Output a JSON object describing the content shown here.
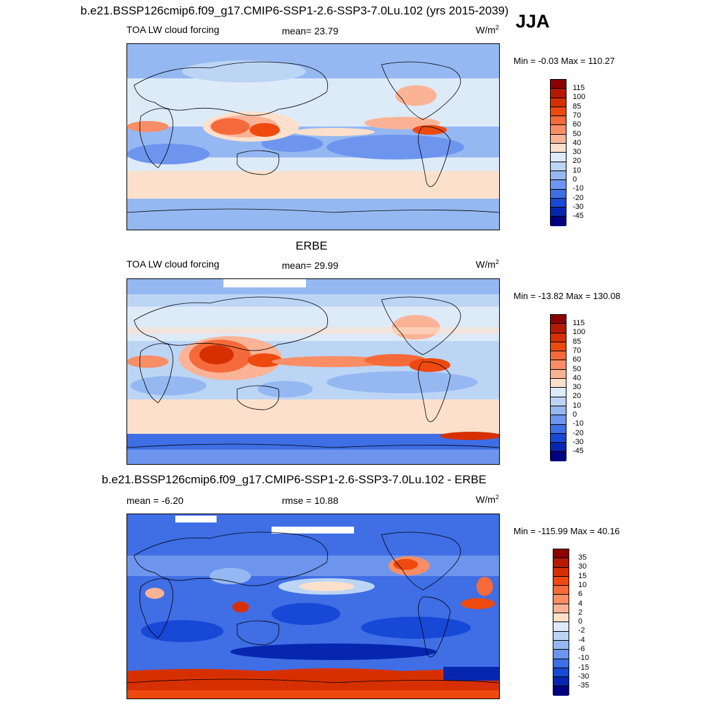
{
  "season": "JJA",
  "panels": [
    {
      "title": "b.e21.BSSP126cmip6.f09_g17.CMIP6-SSP1-2.6-SSP3-7.0Lu.102 (yrs 2015-2039)",
      "left_label": "TOA LW cloud forcing",
      "center_label": "mean=  23.79",
      "units": "W/m",
      "units_sup": "2",
      "minmax": "Min =  -0.03 Max = 110.27",
      "colorbar_labels": [
        "115",
        "100",
        "85",
        "70",
        "60",
        "50",
        "40",
        "30",
        "20",
        "10",
        "0",
        "-10",
        "-20",
        "-30",
        "-45"
      ],
      "colorbar_colors": [
        "#8b0000",
        "#b51a00",
        "#d73000",
        "#ee4a10",
        "#f56a3a",
        "#f98e66",
        "#fbb396",
        "#fde0cc",
        "#ddeaf8",
        "#bcd5f5",
        "#95b8f2",
        "#6d95ee",
        "#3f6ee5",
        "#1848d6",
        "#0626b0",
        "#000080"
      ]
    },
    {
      "title": "ERBE",
      "left_label": "TOA LW cloud forcing",
      "center_label": "mean=  29.99",
      "units": "W/m",
      "units_sup": "2",
      "minmax": "Min = -13.82 Max = 130.08",
      "colorbar_labels": [
        "115",
        "100",
        "85",
        "70",
        "60",
        "50",
        "40",
        "30",
        "20",
        "10",
        "0",
        "-10",
        "-20",
        "-30",
        "-45"
      ],
      "colorbar_colors": [
        "#8b0000",
        "#b51a00",
        "#d73000",
        "#ee4a10",
        "#f56a3a",
        "#f98e66",
        "#fbb396",
        "#fde0cc",
        "#ddeaf8",
        "#bcd5f5",
        "#95b8f2",
        "#6d95ee",
        "#3f6ee5",
        "#1848d6",
        "#0626b0",
        "#000080"
      ]
    },
    {
      "title": "b.e21.BSSP126cmip6.f09_g17.CMIP6-SSP1-2.6-SSP3-7.0Lu.102 - ERBE",
      "left_label": "mean =  -6.20",
      "center_label": "rmse =  10.88",
      "units": "W/m",
      "units_sup": "2",
      "minmax": "Min = -115.99 Max =  40.16",
      "colorbar_labels": [
        "35",
        "30",
        "15",
        "10",
        "6",
        "4",
        "2",
        "0",
        "-2",
        "-4",
        "-6",
        "-10",
        "-15",
        "-30",
        "-35"
      ],
      "colorbar_colors": [
        "#8b0000",
        "#b51a00",
        "#d73000",
        "#ee4a10",
        "#f56a3a",
        "#f98e66",
        "#fbb396",
        "#fde0cc",
        "#ddeaf8",
        "#bcd5f5",
        "#95b8f2",
        "#6d95ee",
        "#3f6ee5",
        "#1848d6",
        "#0626b0",
        "#000080"
      ]
    }
  ]
}
